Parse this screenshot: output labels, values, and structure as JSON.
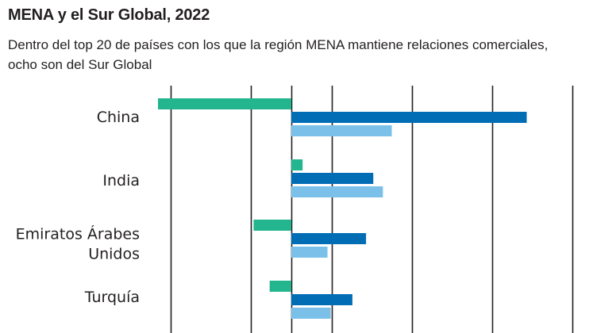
{
  "header": {
    "title": "MENA y el Sur Global, 2022",
    "subtitle": "Dentro del top 20 de países con los que la región MENA mantiene relaciones comerciales, ocho son del Sur Global"
  },
  "colors": {
    "series_1": "#22b58e",
    "series_2": "#006db5",
    "series_3": "#7ac0e8",
    "gridline": "#231f20",
    "label": "#231f20"
  },
  "chart_data": {
    "type": "bar",
    "orientation": "horizontal",
    "title": "MENA y el Sur Global, 2022",
    "subtitle": "Dentro del top 20 de países con los que la región MENA mantiene relaciones comerciales, ocho son del Sur Global",
    "units_note": "Values expressed in gridline intervals relative to the zero axis (no axis tick labels visible)",
    "categories": [
      {
        "label_lines": [
          "China"
        ]
      },
      {
        "label_lines": [
          "India"
        ]
      },
      {
        "label_lines": [
          "Emiratos Árabes",
          "Unidos"
        ]
      },
      {
        "label_lines": [
          "Turquía"
        ]
      }
    ],
    "series": [
      {
        "name": "series_1",
        "color": "#22b58e",
        "values": [
          -1.66,
          0.14,
          -0.47,
          -0.27
        ]
      },
      {
        "name": "series_2",
        "color": "#006db5",
        "values": [
          2.93,
          1.02,
          0.93,
          0.76
        ]
      },
      {
        "name": "series_3",
        "color": "#7ac0e8",
        "values": [
          1.25,
          1.14,
          0.45,
          0.49
        ]
      }
    ],
    "xlim": [
      -1.5,
      3.5
    ],
    "gridlines": [
      -1.5,
      -0.5,
      0,
      0.5,
      1.5,
      2.5,
      3.5
    ],
    "grid": true,
    "legend": "none",
    "xlabel": "",
    "ylabel": ""
  }
}
